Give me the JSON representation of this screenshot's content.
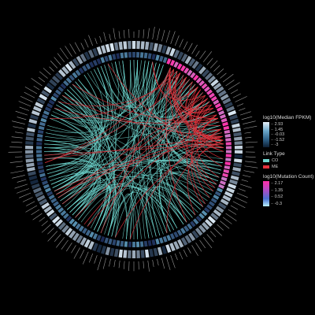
{
  "legend": {
    "fpkm": {
      "title": "log10(Median FPKM)",
      "ticks": [
        "2.93",
        "1.45",
        "-0.03",
        "-1.52",
        "-3"
      ],
      "colors": [
        "#e6f0f8",
        "#6aa6c9",
        "#2d5f86",
        "#0d1f33"
      ]
    },
    "link_type": {
      "title": "Link Type",
      "items": [
        {
          "label": "CO",
          "color": "#6fd6cf"
        },
        {
          "label": "ME",
          "color": "#e0323c"
        }
      ]
    },
    "mutation": {
      "title": "log10(Mutation Count)",
      "ticks": [
        "2.17",
        "1.35",
        "0.52",
        "-0.3"
      ],
      "colors": [
        "#ff2fa8",
        "#b14cc6",
        "#4a6fd0",
        "#b8f0ff"
      ]
    }
  },
  "colors": {
    "background": "#000000",
    "co_link": "#6fd6cf",
    "me_link": "#e0323c",
    "fpkm_low": "#14263d",
    "fpkm_high": "#dbe9f4",
    "mut_low": "#7fd4ec",
    "mut_high": "#ff2fa8"
  }
}
